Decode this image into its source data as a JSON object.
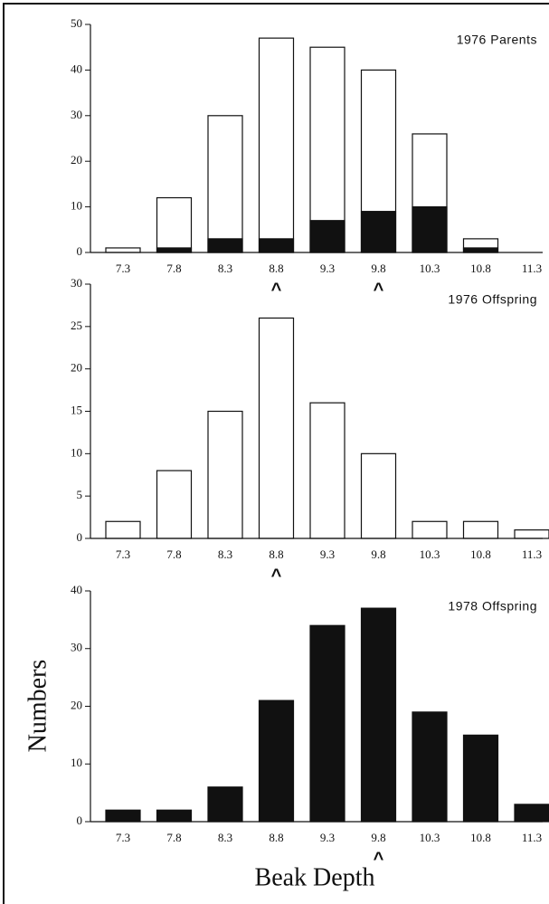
{
  "chart_data": [
    {
      "type": "bar",
      "title": "1976 Parents",
      "categories": [
        "7.3",
        "7.8",
        "8.3",
        "8.8",
        "9.3",
        "9.8",
        "10.3",
        "10.8",
        "11.3"
      ],
      "series": [
        {
          "color": "#ffffff",
          "values": [
            1,
            12,
            30,
            47,
            45,
            40,
            26,
            3,
            0
          ]
        },
        {
          "color": "#111111",
          "values": [
            0,
            1,
            3,
            3,
            7,
            9,
            10,
            1,
            0
          ]
        }
      ],
      "ylim": [
        0,
        50
      ],
      "yticks": [
        0,
        10,
        20,
        30,
        40,
        50
      ],
      "markers": [
        {
          "text": "^",
          "at": "8.8"
        },
        {
          "text": "^",
          "at": "9.8"
        }
      ]
    },
    {
      "type": "bar",
      "title": "1976 Offspring",
      "categories": [
        "7.3",
        "7.8",
        "8.3",
        "8.8",
        "9.3",
        "9.8",
        "10.3",
        "10.8",
        "11.3"
      ],
      "series": [
        {
          "color": "#ffffff",
          "values": [
            2,
            8,
            15,
            26,
            16,
            10,
            2,
            2,
            1
          ]
        }
      ],
      "ylim": [
        0,
        30
      ],
      "yticks": [
        0,
        5,
        10,
        15,
        20,
        25,
        30
      ],
      "markers": [
        {
          "text": "^",
          "at": "8.8"
        }
      ]
    },
    {
      "type": "bar",
      "title": "1978 Offspring",
      "categories": [
        "7.3",
        "7.8",
        "8.3",
        "8.8",
        "9.3",
        "9.8",
        "10.3",
        "10.8",
        "11.3"
      ],
      "series": [
        {
          "color": "#111111",
          "values": [
            2,
            2,
            6,
            21,
            34,
            37,
            19,
            15,
            3
          ]
        }
      ],
      "ylim": [
        0,
        40
      ],
      "yticks": [
        0,
        10,
        20,
        30,
        40
      ],
      "markers": [
        {
          "text": "^",
          "at": "9.8"
        }
      ]
    }
  ],
  "ylabel": "Numbers",
  "xlabel": "Beak Depth"
}
